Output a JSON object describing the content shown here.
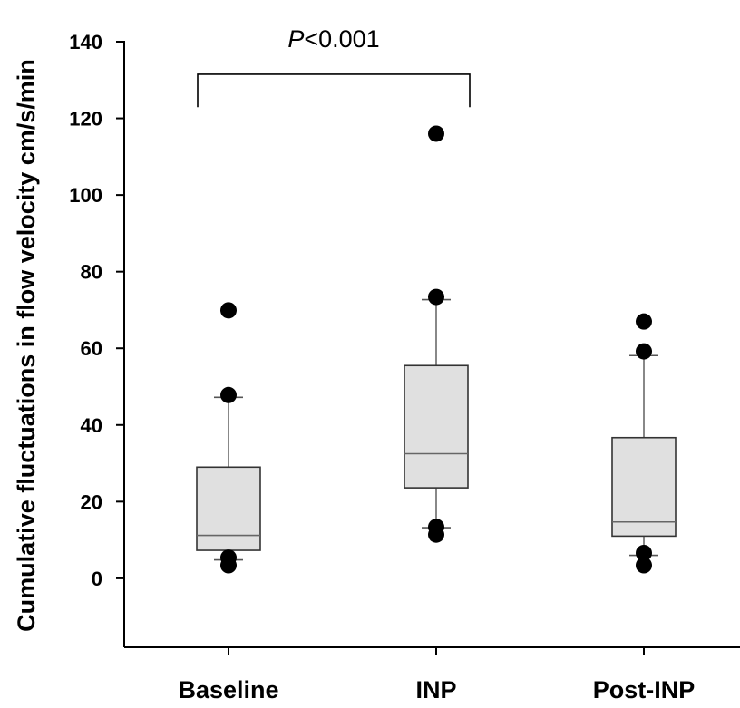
{
  "chart_data": {
    "type": "box",
    "ylabel": "Cumulative fluctuations in flow velocity cm/s/min",
    "xlabel": "",
    "ylim": [
      -18,
      140
    ],
    "y_ticks": [
      0,
      20,
      40,
      60,
      80,
      100,
      120,
      140
    ],
    "y_tick_labels": [
      "0",
      "20",
      "40",
      "60",
      "80",
      "100",
      "120",
      "140"
    ],
    "categories": [
      "Baseline",
      "INP",
      "Post-INP"
    ],
    "boxes": [
      {
        "category": "Baseline",
        "whisker_low": 4.8,
        "q1": 7.3,
        "median": 11.2,
        "q3": 29,
        "whisker_high": 47.2,
        "outliers": [
          3.4,
          5.4,
          47.8,
          69.9
        ]
      },
      {
        "category": "INP",
        "whisker_low": 13.2,
        "q1": 23.6,
        "median": 32.5,
        "q3": 55.5,
        "whisker_high": 72.7,
        "outliers": [
          11.4,
          13.4,
          73.4,
          116.0
        ]
      },
      {
        "category": "Post-INP",
        "whisker_low": 6.0,
        "q1": 11.0,
        "median": 14.7,
        "q3": 36.7,
        "whisker_high": 58.1,
        "outliers": [
          3.4,
          6.6,
          59.2,
          67.0
        ]
      }
    ],
    "box_fill": "#e0e0e0",
    "annotation": {
      "text_italic": "P",
      "text_rest": "<0.001",
      "from_category": "Baseline",
      "to_category": "INP",
      "bracket_top": 131.5,
      "bracket_bottom": 122.9
    },
    "grid": false
  }
}
